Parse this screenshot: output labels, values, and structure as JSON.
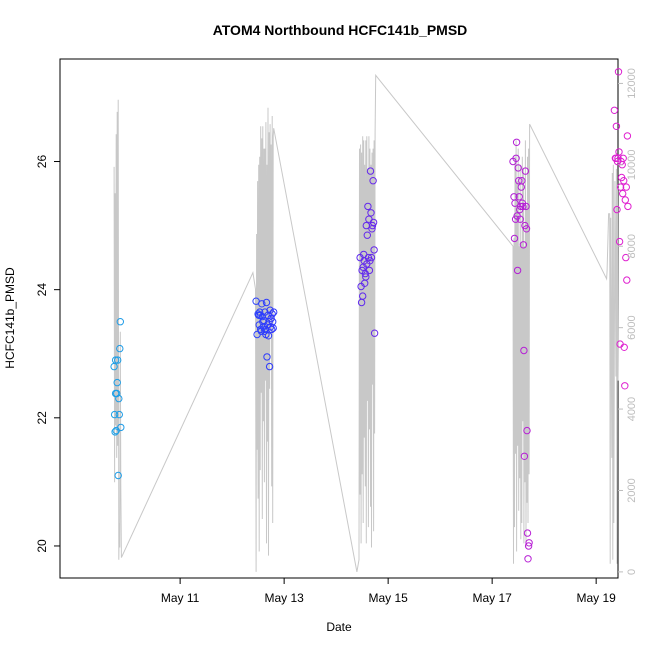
{
  "chart_data": {
    "type": "scatter",
    "title": "ATOM4 Northbound HCFC141b_PMSD",
    "xlabel": "Date",
    "ylabel": "HCFC141b_PMSD",
    "xlim_days": [
      8.69,
      19.42
    ],
    "ylim": [
      19.5,
      27.6
    ],
    "y2lim": [
      -150,
      12600
    ],
    "x_ticks": [
      {
        "value": 11,
        "label": "May 11"
      },
      {
        "value": 13,
        "label": "May 13"
      },
      {
        "value": 15,
        "label": "May 15"
      },
      {
        "value": 17,
        "label": "May 17"
      },
      {
        "value": 19,
        "label": "May 19"
      }
    ],
    "y_ticks": [
      {
        "value": 20,
        "label": "20"
      },
      {
        "value": 22,
        "label": "22"
      },
      {
        "value": 24,
        "label": "24"
      },
      {
        "value": 26,
        "label": "26"
      }
    ],
    "y2_ticks": [
      {
        "value": 0,
        "label": "0"
      },
      {
        "value": 2000,
        "label": "2000"
      },
      {
        "value": 4000,
        "label": "4000"
      },
      {
        "value": 6000,
        "label": "6000"
      },
      {
        "value": 8000,
        "label": "8000"
      },
      {
        "value": 10000,
        "label": "10000"
      },
      {
        "value": 12000,
        "label": "12000"
      }
    ],
    "grid": false,
    "points": {
      "color_scale": [
        "#1ea0e6",
        "#3030ff",
        "#9a20d8",
        "#e020d0"
      ],
      "x": [
        9.73,
        9.74,
        9.75,
        9.76,
        9.76,
        9.77,
        9.78,
        9.79,
        9.8,
        9.81,
        9.82,
        9.83,
        9.84,
        9.85,
        9.86,
        12.46,
        12.48,
        12.5,
        12.51,
        12.52,
        12.53,
        12.54,
        12.55,
        12.56,
        12.57,
        12.58,
        12.59,
        12.6,
        12.61,
        12.62,
        12.63,
        12.64,
        12.65,
        12.66,
        12.67,
        12.68,
        12.69,
        12.7,
        12.71,
        12.72,
        12.73,
        12.74,
        12.75,
        12.76,
        12.77,
        12.78,
        12.79,
        12.8,
        14.46,
        14.48,
        14.49,
        14.5,
        14.51,
        14.52,
        14.53,
        14.54,
        14.55,
        14.56,
        14.57,
        14.58,
        14.59,
        14.6,
        14.61,
        14.62,
        14.63,
        14.64,
        14.65,
        14.66,
        14.67,
        14.68,
        14.69,
        14.7,
        14.71,
        14.72,
        14.73,
        14.74,
        17.4,
        17.42,
        17.43,
        17.44,
        17.45,
        17.46,
        17.47,
        17.48,
        17.49,
        17.5,
        17.51,
        17.52,
        17.53,
        17.54,
        17.55,
        17.56,
        17.57,
        17.58,
        17.59,
        17.6,
        17.61,
        17.62,
        17.63,
        17.64,
        17.65,
        17.66,
        17.67,
        17.68,
        17.69,
        17.7,
        17.71,
        19.35,
        19.37,
        19.38,
        19.39,
        19.4,
        19.41,
        19.42,
        19.43,
        19.44,
        19.45,
        19.46,
        19.47,
        19.48,
        19.49,
        19.5,
        19.51,
        19.52,
        19.53,
        19.54,
        19.55,
        19.56,
        19.57,
        19.58,
        19.59,
        19.6,
        19.61
      ],
      "y": [
        22.8,
        22.05,
        21.78,
        22.38,
        22.9,
        21.8,
        22.38,
        22.55,
        22.9,
        21.1,
        22.3,
        22.05,
        23.08,
        23.5,
        21.85,
        23.82,
        23.3,
        23.62,
        23.6,
        23.45,
        23.65,
        23.6,
        23.38,
        23.35,
        23.78,
        23.58,
        23.5,
        23.42,
        23.52,
        23.35,
        23.65,
        23.38,
        23.3,
        23.8,
        22.95,
        23.45,
        23.6,
        23.28,
        23.5,
        22.8,
        23.68,
        23.42,
        23.55,
        23.38,
        23.62,
        23.5,
        23.4,
        23.65,
        24.5,
        24.05,
        23.8,
        24.3,
        23.9,
        24.35,
        24.55,
        24.45,
        24.1,
        24.25,
        24.2,
        25.0,
        24.4,
        24.85,
        25.3,
        24.5,
        25.1,
        24.3,
        24.45,
        25.85,
        25.2,
        24.5,
        24.95,
        25.0,
        25.7,
        25.05,
        24.62,
        23.32,
        26.0,
        25.45,
        24.8,
        25.35,
        25.1,
        26.05,
        26.3,
        25.15,
        24.3,
        25.9,
        25.7,
        25.45,
        25.25,
        25.1,
        25.3,
        25.6,
        25.7,
        25.35,
        25.3,
        24.7,
        23.05,
        21.4,
        25.0,
        25.85,
        25.3,
        24.95,
        21.8,
        20.2,
        19.8,
        20.0,
        20.05,
        26.8,
        26.05,
        26.05,
        26.55,
        25.25,
        26.0,
        26.05,
        27.4,
        26.15,
        24.75,
        23.15,
        25.6,
        26.0,
        25.75,
        25.95,
        25.5,
        26.05,
        25.7,
        23.1,
        22.5,
        25.4,
        24.5,
        25.6,
        24.15,
        26.4,
        25.3
      ]
    },
    "line": {
      "color": "#c8c8c8",
      "x": [
        9.73,
        9.74,
        9.75,
        9.76,
        9.77,
        9.78,
        9.79,
        9.8,
        9.81,
        9.82,
        9.83,
        9.84,
        9.85,
        9.86,
        9.87,
        12.4,
        12.45,
        12.46,
        12.47,
        12.48,
        12.49,
        12.5,
        12.51,
        12.52,
        12.53,
        12.54,
        12.55,
        12.56,
        12.57,
        12.58,
        12.59,
        12.6,
        12.61,
        12.62,
        12.63,
        12.64,
        12.65,
        12.66,
        12.67,
        12.68,
        12.69,
        12.7,
        12.71,
        12.72,
        12.73,
        12.74,
        12.75,
        12.76,
        12.77,
        12.78,
        12.79,
        12.8,
        14.4,
        14.44,
        14.45,
        14.46,
        14.47,
        14.48,
        14.49,
        14.5,
        14.51,
        14.52,
        14.53,
        14.54,
        14.55,
        14.56,
        14.57,
        14.58,
        14.59,
        14.6,
        14.61,
        14.62,
        14.63,
        14.64,
        14.65,
        14.66,
        14.67,
        14.68,
        14.69,
        14.7,
        14.71,
        14.72,
        14.73,
        14.74,
        14.75,
        14.76,
        17.4,
        17.41,
        17.42,
        17.43,
        17.44,
        17.45,
        17.46,
        17.47,
        17.48,
        17.49,
        17.5,
        17.51,
        17.52,
        17.53,
        17.54,
        17.55,
        17.56,
        17.57,
        17.58,
        17.59,
        17.6,
        17.61,
        17.62,
        17.63,
        17.64,
        17.65,
        17.66,
        17.67,
        17.68,
        17.69,
        17.7,
        17.71,
        17.72,
        19.2,
        19.21,
        19.24,
        19.26,
        19.27,
        19.28,
        19.3,
        19.31,
        19.32,
        19.33,
        19.34,
        19.36,
        19.38,
        19.39,
        19.4,
        19.41,
        19.42
      ],
      "y2": [
        9950,
        2200,
        9300,
        3600,
        10750,
        2800,
        11300,
        3100,
        11600,
        300,
        1200,
        600,
        5900,
        2100,
        350,
        7350,
        6950,
        0,
        8300,
        3000,
        9600,
        1800,
        10000,
        500,
        10200,
        2500,
        10950,
        4400,
        10650,
        1300,
        10950,
        3700,
        10400,
        2200,
        10400,
        4700,
        11050,
        700,
        10000,
        3200,
        11400,
        400,
        10800,
        4500,
        11000,
        6400,
        10500,
        2100,
        11200,
        1200,
        10700,
        10900,
        0,
        300,
        10400,
        1900,
        10500,
        700,
        10300,
        2400,
        10700,
        1200,
        10600,
        3300,
        10000,
        2100,
        10600,
        700,
        10700,
        4200,
        9900,
        1100,
        10700,
        3500,
        10400,
        1600,
        10000,
        600,
        10300,
        4600,
        10400,
        1000,
        10600,
        3400,
        10800,
        12200,
        8000,
        200,
        8200,
        1100,
        10200,
        2900,
        10600,
        500,
        9600,
        3100,
        10400,
        1500,
        8000,
        2300,
        10000,
        800,
        8100,
        1200,
        10200,
        3700,
        9900,
        700,
        8000,
        2200,
        10600,
        600,
        9000,
        1700,
        10200,
        1200,
        10400,
        2400,
        11000,
        7200,
        7400,
        8800,
        8800,
        200,
        8700,
        2800,
        9800,
        300,
        10000,
        1200,
        9600,
        4800,
        9900,
        200,
        9400,
        4700
      ]
    }
  }
}
